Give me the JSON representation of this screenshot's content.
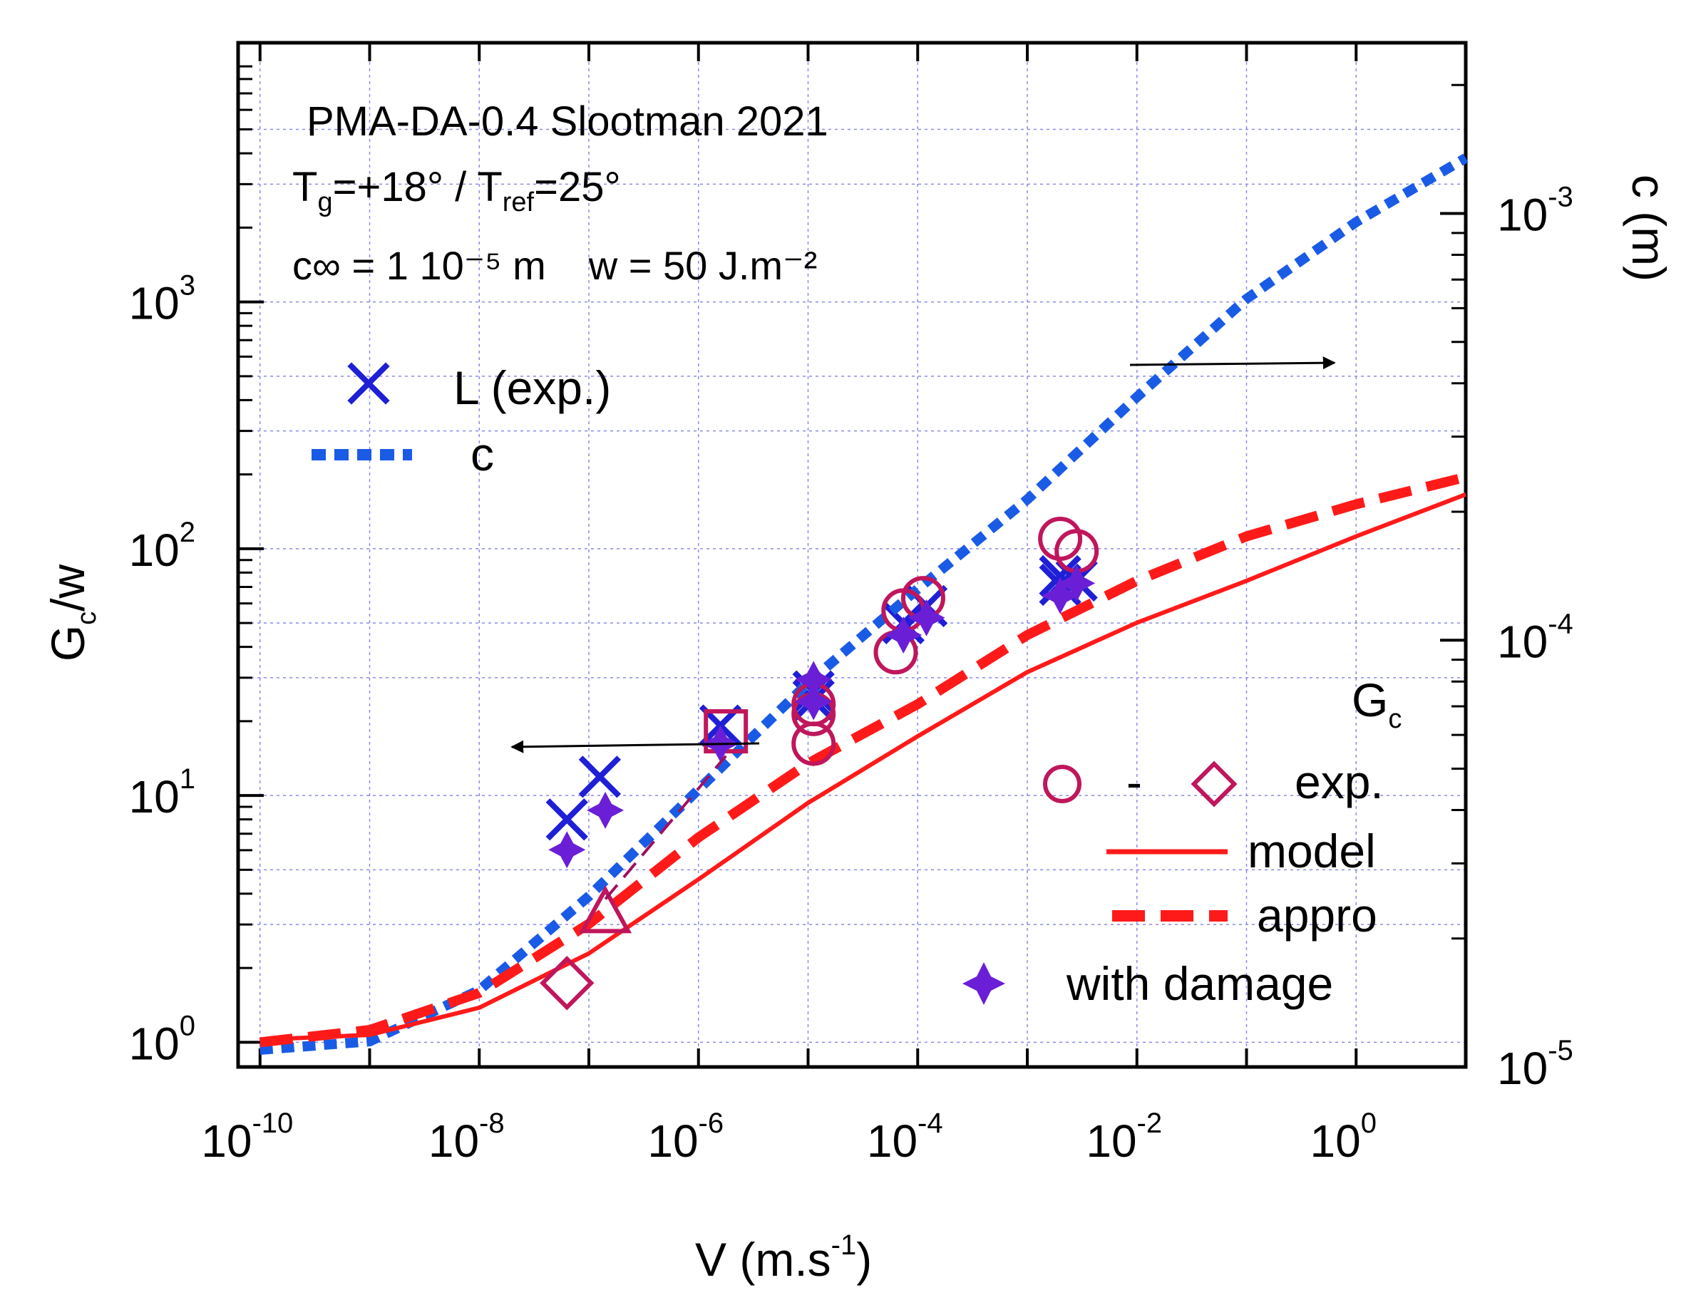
{
  "chart_data": {
    "type": "scatter",
    "title": "PMA-DA-0.4 Slootman 2021",
    "annotations": {
      "line1": "PMA-DA-0.4 Slootman 2021",
      "tg_prefix": "T",
      "tg_sub": "g",
      "tg_mid": "=+18° / T",
      "tref_sub": "ref",
      "tref_suffix": "=25°",
      "line3_a": "c∞ = 1 10⁻⁵ m",
      "line3_b": "w = 50 J.m⁻²"
    },
    "xlabel": {
      "main": "V (m.s",
      "sup": "-1",
      "close": ")"
    },
    "ylabel": {
      "main": "G",
      "sub": "c",
      "rest": "/w"
    },
    "y2label": "c (m)",
    "x_axis": {
      "scale": "log",
      "range_exp": [
        -10.2,
        1.0
      ],
      "ticks": [
        {
          "base": "10",
          "exp": "-10",
          "e": -10
        },
        {
          "base": "10",
          "exp": "-8",
          "e": -8
        },
        {
          "base": "10",
          "exp": "-6",
          "e": -6
        },
        {
          "base": "10",
          "exp": "-4",
          "e": -4
        },
        {
          "base": "10",
          "exp": "-2",
          "e": -2
        },
        {
          "base": "10",
          "exp": "0",
          "e": 0
        }
      ]
    },
    "y_axis": {
      "scale": "log",
      "range_exp": [
        -0.1,
        4.05
      ],
      "ticks": [
        {
          "base": "10",
          "exp": "0",
          "e": 0
        },
        {
          "base": "10",
          "exp": "1",
          "e": 1
        },
        {
          "base": "10",
          "exp": "2",
          "e": 2
        },
        {
          "base": "10",
          "exp": "3",
          "e": 3
        }
      ]
    },
    "y2_axis": {
      "scale": "log",
      "range_exp": [
        -5.0,
        -2.6
      ],
      "ticks": [
        {
          "base": "10",
          "exp": "-5",
          "e": -5
        },
        {
          "base": "10",
          "exp": "-4",
          "e": -4
        },
        {
          "base": "10",
          "exp": "-3",
          "e": -3
        }
      ]
    },
    "legend": {
      "l_exp": "L (exp.)",
      "c": "c",
      "gc_title": "G",
      "gc_sub": "c",
      "dash": "-",
      "exp": "exp.",
      "model": "model",
      "appro": "appro",
      "with_damage": "with damage"
    },
    "series": [
      {
        "name": "L (exp.)",
        "axis": "right",
        "marker": "x",
        "color": "#1f1fd6",
        "points": [
          [
            -7.2,
            -4.42
          ],
          [
            -6.9,
            -4.32
          ],
          [
            -5.8,
            -4.2
          ],
          [
            -4.95,
            -4.14
          ],
          [
            -4.95,
            -4.12
          ],
          [
            -4.13,
            -3.96
          ],
          [
            -3.92,
            -3.92
          ],
          [
            -2.7,
            -3.87
          ],
          [
            -2.55,
            -3.86
          ],
          [
            -2.7,
            -3.85
          ]
        ]
      },
      {
        "name": "c",
        "axis": "right",
        "style": "dotted",
        "color": "#1a5be6",
        "points": [
          [
            -10.0,
            -4.96
          ],
          [
            -9.0,
            -4.94
          ],
          [
            -8.0,
            -4.82
          ],
          [
            -7.0,
            -4.6
          ],
          [
            -6.0,
            -4.35
          ],
          [
            -5.0,
            -4.1
          ],
          [
            -4.0,
            -3.88
          ],
          [
            -3.0,
            -3.67
          ],
          [
            -2.0,
            -3.43
          ],
          [
            -1.0,
            -3.2
          ],
          [
            0.0,
            -3.02
          ],
          [
            1.0,
            -2.87
          ]
        ]
      },
      {
        "name": "model",
        "axis": "left",
        "style": "solid",
        "color": "#ff1a1a",
        "points": [
          [
            -10.0,
            0.01
          ],
          [
            -9.0,
            0.03
          ],
          [
            -8.0,
            0.14
          ],
          [
            -7.0,
            0.36
          ],
          [
            -6.0,
            0.66
          ],
          [
            -5.0,
            0.97
          ],
          [
            -4.0,
            1.24
          ],
          [
            -3.0,
            1.5
          ],
          [
            -2.0,
            1.7
          ],
          [
            -1.0,
            1.87
          ],
          [
            0.0,
            2.05
          ],
          [
            1.0,
            2.22
          ]
        ]
      },
      {
        "name": "appro",
        "axis": "left",
        "style": "dashed",
        "color": "#ff1a1a",
        "points": [
          [
            -10.0,
            0.0
          ],
          [
            -9.0,
            0.05
          ],
          [
            -8.0,
            0.2
          ],
          [
            -7.0,
            0.48
          ],
          [
            -6.0,
            0.83
          ],
          [
            -5.0,
            1.13
          ],
          [
            -4.0,
            1.37
          ],
          [
            -3.0,
            1.65
          ],
          [
            -2.0,
            1.87
          ],
          [
            -1.0,
            2.05
          ],
          [
            0.0,
            2.18
          ],
          [
            1.0,
            2.29
          ]
        ]
      },
      {
        "name": "exp. (circles)",
        "axis": "left",
        "marker": "circle",
        "color": "#c0165c",
        "points": [
          [
            -4.95,
            1.21
          ],
          [
            -4.95,
            1.37
          ],
          [
            -4.95,
            1.33
          ],
          [
            -4.2,
            1.58
          ],
          [
            -4.13,
            1.75
          ],
          [
            -3.95,
            1.8
          ],
          [
            -2.7,
            2.04
          ],
          [
            -2.55,
            1.99
          ]
        ]
      },
      {
        "name": "exp. (diamond)",
        "axis": "left",
        "marker": "diamond",
        "color": "#c0165c",
        "points": [
          [
            -7.2,
            0.24
          ]
        ]
      },
      {
        "name": "exp. (triangle)",
        "axis": "left",
        "marker": "triangle",
        "color": "#c0165c",
        "points": [
          [
            -6.85,
            0.52
          ]
        ]
      },
      {
        "name": "exp. (square)",
        "axis": "left",
        "marker": "square",
        "color": "#c0165c",
        "points": [
          [
            -5.75,
            1.26
          ]
        ]
      },
      {
        "name": "with damage",
        "axis": "left",
        "marker": "star4",
        "color": "#6a1fd6",
        "points": [
          [
            -7.2,
            0.78
          ],
          [
            -6.85,
            0.94
          ],
          [
            -5.8,
            1.21
          ],
          [
            -4.95,
            1.38
          ],
          [
            -4.95,
            1.47
          ],
          [
            -4.13,
            1.65
          ],
          [
            -3.92,
            1.72
          ],
          [
            -2.7,
            1.81
          ],
          [
            -2.55,
            1.86
          ]
        ]
      },
      {
        "name": "exp. trend",
        "axis": "left",
        "style": "thin-dashed",
        "color": "#a01060",
        "points": [
          [
            -6.85,
            0.58
          ],
          [
            -5.75,
            1.16
          ]
        ]
      }
    ]
  }
}
